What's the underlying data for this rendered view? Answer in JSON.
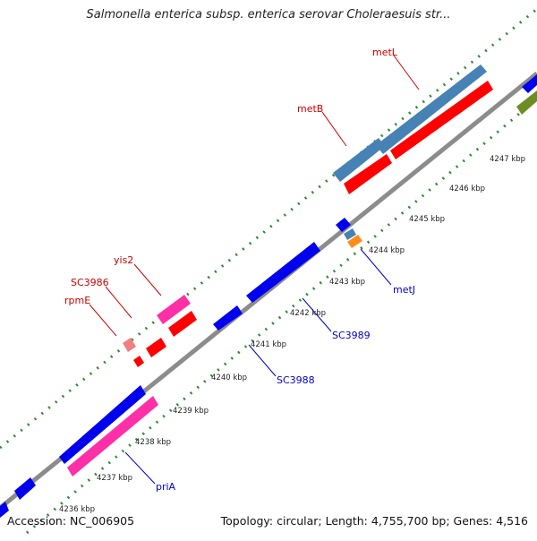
{
  "title": "Salmonella enterica subsp. enterica serovar Choleraesuis str...",
  "footer": {
    "accession": "Accession: NC_006905",
    "summary": "Topology: circular; Length: 4,755,700 bp; Genes: 4,516"
  },
  "colors": {
    "backbone": "#8c8c8c",
    "tick_dots": "#2e8b2e",
    "label_red": "#cc0000",
    "label_blue": "#0000cc",
    "gene_blue": "#0000ee",
    "gene_red": "#ff0000",
    "gene_pink": "#ff2fa8",
    "gene_steel": "#4682b4",
    "gene_orange": "#ff8c1a",
    "gene_green": "#6b8e23",
    "gene_lightpink": "#f08080"
  },
  "kbp_ticks": [
    "4236 kbp",
    "4237 kbp",
    "4238 kbp",
    "4239 kbp",
    "4240 kbp",
    "4241 kbp",
    "4242 kbp",
    "4243 kbp",
    "4244 kbp",
    "4245 kbp",
    "4246 kbp",
    "4247 kbp"
  ],
  "gene_labels": [
    {
      "name": "metL",
      "color": "red"
    },
    {
      "name": "metB",
      "color": "red"
    },
    {
      "name": "yis2",
      "color": "red"
    },
    {
      "name": "SC3986",
      "color": "red"
    },
    {
      "name": "rpmE",
      "color": "red"
    },
    {
      "name": "metJ",
      "color": "blue"
    },
    {
      "name": "SC3989",
      "color": "blue"
    },
    {
      "name": "SC3988",
      "color": "blue"
    },
    {
      "name": "priA",
      "color": "blue"
    }
  ]
}
